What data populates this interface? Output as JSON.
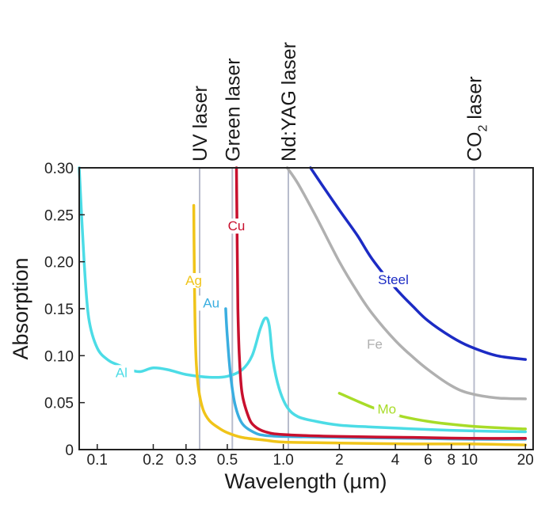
{
  "chart_data": {
    "type": "line",
    "title": "",
    "xlabel": "Wavelength (µm)",
    "ylabel": "Absorption",
    "xscale": "log",
    "xlim": [
      0.08,
      22
    ],
    "ylim": [
      0,
      0.3
    ],
    "x_ticks": [
      {
        "value": 0.1,
        "label": "0.1"
      },
      {
        "value": 0.2,
        "label": "0.2"
      },
      {
        "value": 0.3,
        "label": "0.3"
      },
      {
        "value": 0.5,
        "label": "0.5"
      },
      {
        "value": 1,
        "label": "1.0"
      },
      {
        "value": 2,
        "label": "2"
      },
      {
        "value": 4,
        "label": "4"
      },
      {
        "value": 6,
        "label": "6"
      },
      {
        "value": 8,
        "label": "8"
      },
      {
        "value": 10,
        "label": "10"
      },
      {
        "value": 20,
        "label": "20"
      }
    ],
    "y_ticks": [
      {
        "value": 0,
        "label": "0"
      },
      {
        "value": 0.05,
        "label": "0.05"
      },
      {
        "value": 0.1,
        "label": "0.10"
      },
      {
        "value": 0.15,
        "label": "0.15"
      },
      {
        "value": 0.2,
        "label": "0.20"
      },
      {
        "value": 0.25,
        "label": "0.25"
      },
      {
        "value": 0.3,
        "label": "0.30"
      }
    ],
    "lasers": [
      {
        "name": "UV laser",
        "x": 0.355
      },
      {
        "name": "Green laser",
        "x": 0.532
      },
      {
        "name": "Nd:YAG laser",
        "x": 1.064
      },
      {
        "name": "CO",
        "subscript": "2",
        "suffix": " laser",
        "x": 10.6
      }
    ],
    "series": [
      {
        "name": "Al",
        "color": "#4cdce6",
        "points": [
          [
            0.08,
            0.3
          ],
          [
            0.085,
            0.2
          ],
          [
            0.09,
            0.14
          ],
          [
            0.1,
            0.108
          ],
          [
            0.115,
            0.095
          ],
          [
            0.13,
            0.09
          ],
          [
            0.15,
            0.085
          ],
          [
            0.17,
            0.083
          ],
          [
            0.2,
            0.087
          ],
          [
            0.24,
            0.085
          ],
          [
            0.3,
            0.08
          ],
          [
            0.4,
            0.077
          ],
          [
            0.5,
            0.078
          ],
          [
            0.6,
            0.085
          ],
          [
            0.68,
            0.1
          ],
          [
            0.75,
            0.128
          ],
          [
            0.8,
            0.14
          ],
          [
            0.84,
            0.132
          ],
          [
            0.88,
            0.095
          ],
          [
            0.95,
            0.065
          ],
          [
            1.05,
            0.045
          ],
          [
            1.2,
            0.035
          ],
          [
            1.5,
            0.03
          ],
          [
            2,
            0.026
          ],
          [
            3,
            0.024
          ],
          [
            5,
            0.022
          ],
          [
            10,
            0.02
          ],
          [
            20,
            0.019
          ]
        ],
        "label_at": [
          0.135,
          0.079
        ]
      },
      {
        "name": "Ag",
        "color": "#f0c419",
        "points": [
          [
            0.33,
            0.26
          ],
          [
            0.332,
            0.2
          ],
          [
            0.335,
            0.14
          ],
          [
            0.34,
            0.095
          ],
          [
            0.35,
            0.065
          ],
          [
            0.37,
            0.043
          ],
          [
            0.4,
            0.031
          ],
          [
            0.45,
            0.023
          ],
          [
            0.5,
            0.018
          ],
          [
            0.6,
            0.013
          ],
          [
            0.8,
            0.01
          ],
          [
            1,
            0.008
          ],
          [
            2,
            0.007
          ],
          [
            5,
            0.006
          ],
          [
            10,
            0.006
          ],
          [
            20,
            0.005
          ]
        ],
        "label_at": [
          0.33,
          0.177
        ]
      },
      {
        "name": "Au",
        "color": "#3aaee0",
        "points": [
          [
            0.49,
            0.15
          ],
          [
            0.5,
            0.12
          ],
          [
            0.52,
            0.08
          ],
          [
            0.55,
            0.048
          ],
          [
            0.6,
            0.028
          ],
          [
            0.7,
            0.018
          ],
          [
            0.8,
            0.015
          ],
          [
            1,
            0.014
          ],
          [
            2,
            0.013
          ],
          [
            5,
            0.012
          ],
          [
            10,
            0.011
          ],
          [
            20,
            0.011
          ]
        ],
        "label_at": [
          0.41,
          0.153
        ]
      },
      {
        "name": "Cu",
        "color": "#c8102e",
        "points": [
          [
            0.56,
            0.3
          ],
          [
            0.565,
            0.22
          ],
          [
            0.57,
            0.15
          ],
          [
            0.58,
            0.1
          ],
          [
            0.6,
            0.06
          ],
          [
            0.65,
            0.035
          ],
          [
            0.7,
            0.025
          ],
          [
            0.8,
            0.019
          ],
          [
            1,
            0.016
          ],
          [
            2,
            0.014
          ],
          [
            5,
            0.013
          ],
          [
            10,
            0.012
          ],
          [
            20,
            0.012
          ]
        ],
        "label_at": [
          0.56,
          0.235
        ]
      },
      {
        "name": "Steel",
        "color": "#1c2bc4",
        "points": [
          [
            1.4,
            0.3
          ],
          [
            1.6,
            0.283
          ],
          [
            2,
            0.255
          ],
          [
            2.5,
            0.228
          ],
          [
            3,
            0.203
          ],
          [
            4,
            0.172
          ],
          [
            5,
            0.152
          ],
          [
            6,
            0.137
          ],
          [
            8,
            0.12
          ],
          [
            10,
            0.11
          ],
          [
            14,
            0.1
          ],
          [
            20,
            0.096
          ]
        ],
        "label_at": [
          3.9,
          0.178
        ]
      },
      {
        "name": "Fe",
        "color": "#b0b0b0",
        "points": [
          [
            1.05,
            0.3
          ],
          [
            1.2,
            0.283
          ],
          [
            1.5,
            0.248
          ],
          [
            2,
            0.2
          ],
          [
            2.5,
            0.168
          ],
          [
            3,
            0.145
          ],
          [
            4,
            0.116
          ],
          [
            5,
            0.098
          ],
          [
            6,
            0.085
          ],
          [
            8,
            0.068
          ],
          [
            10,
            0.06
          ],
          [
            14,
            0.055
          ],
          [
            20,
            0.054
          ]
        ],
        "label_at": [
          3.1,
          0.109
        ]
      },
      {
        "name": "Mo",
        "color": "#a8dc28",
        "points": [
          [
            2,
            0.06
          ],
          [
            3,
            0.045
          ],
          [
            4,
            0.037
          ],
          [
            6,
            0.03
          ],
          [
            10,
            0.025
          ],
          [
            15,
            0.023
          ],
          [
            20,
            0.022
          ]
        ],
        "label_at": [
          3.6,
          0.04
        ]
      }
    ]
  }
}
